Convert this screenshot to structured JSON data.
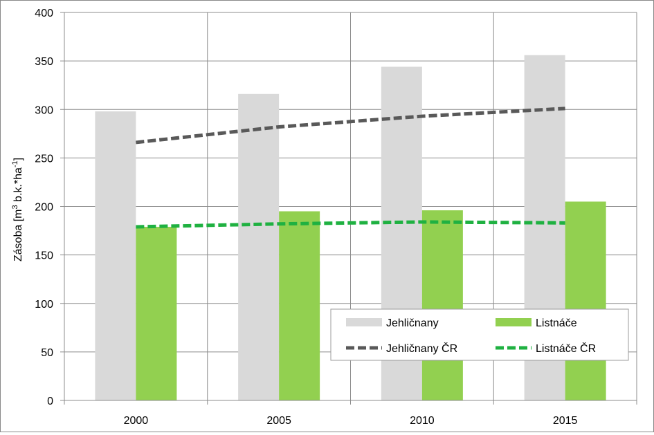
{
  "chart_data": {
    "type": "bar",
    "categories": [
      "2000",
      "2005",
      "2010",
      "2015"
    ],
    "series": [
      {
        "name": "Jehličnany",
        "type": "bar",
        "color": "#d9d9d9",
        "values": [
          298,
          316,
          344,
          356
        ]
      },
      {
        "name": "Listnáče",
        "type": "bar",
        "color": "#92d050",
        "values": [
          179,
          195,
          196,
          205
        ]
      },
      {
        "name": "Jehličnany ČR",
        "type": "line",
        "style": "dashed",
        "color": "#595959",
        "values": [
          266,
          282,
          293,
          301
        ]
      },
      {
        "name": "Listnáče ČR",
        "type": "line",
        "style": "dashed",
        "color": "#1fb141",
        "values": [
          179,
          182,
          184,
          183
        ]
      }
    ],
    "ylabel_parts": {
      "prefix": "Zásoba [m",
      "sup1": "3",
      "mid": " b.k.*ha",
      "sup2": "-1",
      "suffix": "]"
    },
    "ylim": [
      0,
      400
    ],
    "yticks": [
      0,
      50,
      100,
      150,
      200,
      250,
      300,
      350,
      400
    ],
    "ytick_labels": [
      "0",
      "50",
      "100",
      "150",
      "200",
      "250",
      "300",
      "350",
      "400"
    ],
    "grid": true,
    "legend_position": "bottom-right"
  }
}
